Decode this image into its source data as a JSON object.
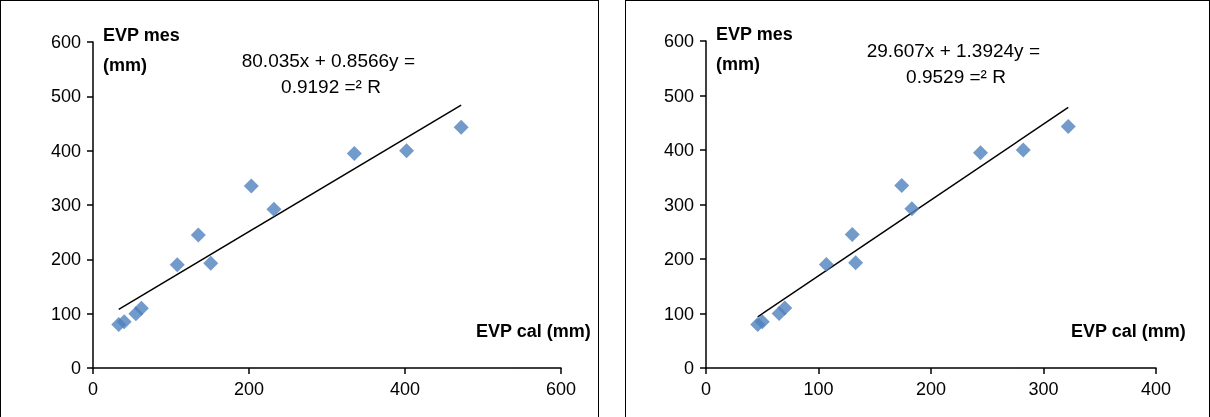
{
  "chart_data": [
    {
      "type": "scatter",
      "xlabel": "EVP cal (mm)",
      "ylabel": "EVP mes (mm)",
      "annotations": [
        "80.035x + 0.8566y = 0.9192 =² R"
      ],
      "xlim": [
        0,
        600
      ],
      "xticks": [
        0,
        200,
        400,
        600
      ],
      "ylim": [
        0,
        600
      ],
      "yticks": [
        0,
        100,
        200,
        300,
        400,
        500,
        600
      ],
      "grid": false,
      "series": [
        {
          "marker": "diamond",
          "color": "#4f81bd",
          "x": [
            33,
            40,
            55,
            62,
            108,
            135,
            151,
            203,
            232,
            335,
            402,
            472
          ],
          "values": [
            80,
            85,
            100,
            110,
            190,
            245,
            193,
            335,
            292,
            395,
            400,
            443
          ]
        },
        {
          "type": "line",
          "marker": "none",
          "line_style": "solid",
          "color": "#000000",
          "x": [
            33,
            472
          ],
          "values": [
            108,
            484
          ]
        }
      ]
    },
    {
      "type": "scatter",
      "xlabel": "EVP cal (mm)",
      "ylabel": "EVP mes (mm)",
      "annotations": [
        "29.607x + 1.3924y = 0.9529 =² R"
      ],
      "xlim": [
        0,
        400
      ],
      "xticks": [
        0,
        100,
        200,
        300,
        400
      ],
      "ylim": [
        0,
        600
      ],
      "yticks": [
        0,
        100,
        200,
        300,
        400,
        500,
        600
      ],
      "grid": false,
      "series": [
        {
          "marker": "diamond",
          "color": "#4f81bd",
          "x": [
            46,
            50,
            65,
            70,
            107,
            130,
            133,
            174,
            183,
            244,
            282,
            322
          ],
          "values": [
            80,
            85,
            100,
            110,
            190,
            245,
            193,
            335,
            292,
            395,
            400,
            443
          ]
        },
        {
          "type": "line",
          "marker": "none",
          "line_style": "solid",
          "color": "#000000",
          "x": [
            46,
            322
          ],
          "values": [
            94,
            478
          ]
        }
      ]
    }
  ]
}
